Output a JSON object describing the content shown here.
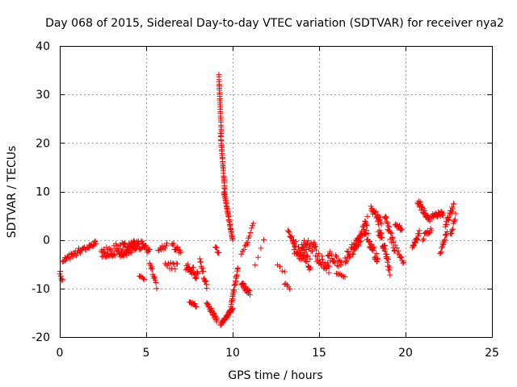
{
  "chart_data": {
    "type": "scatter",
    "title": "Day 068 of 2015, Sidereal Day-to-day VTEC variation (SDTVAR) for receiver nya2",
    "xlabel": "GPS time / hours",
    "ylabel": "SDTVAR / TECUs",
    "xlim": [
      0,
      25
    ],
    "ylim": [
      -20,
      40
    ],
    "xticks": [
      0,
      5,
      10,
      15,
      20,
      25
    ],
    "yticks": [
      -20,
      -10,
      0,
      10,
      20,
      30,
      40
    ],
    "grid": true,
    "marker": "+",
    "color": "#ff0000",
    "segments": [
      {
        "x0": 0.0,
        "x1": 0.15,
        "y0": -6.5,
        "y1": -8.5,
        "n": 6,
        "jitter": 1.0
      },
      {
        "x0": 0.15,
        "x1": 1.2,
        "y0": -4.0,
        "y1": -2.0,
        "n": 22,
        "jitter": 1.5
      },
      {
        "x0": 1.2,
        "x1": 1.7,
        "y0": -2.5,
        "y1": -1.0,
        "n": 10,
        "jitter": 1.0
      },
      {
        "x0": 1.7,
        "x1": 2.1,
        "y0": -1.5,
        "y1": -0.5,
        "n": 10,
        "jitter": 0.8
      },
      {
        "x0": 2.4,
        "x1": 4.8,
        "y0": -2.5,
        "y1": -1.0,
        "n": 80,
        "jitter": 2.5
      },
      {
        "x0": 3.5,
        "x1": 4.5,
        "y0": -3.0,
        "y1": -1.0,
        "n": 25,
        "jitter": 2.0
      },
      {
        "x0": 4.6,
        "x1": 4.9,
        "y0": -7.5,
        "y1": -8.0,
        "n": 6,
        "jitter": 0.5
      },
      {
        "x0": 4.8,
        "x1": 5.2,
        "y0": -1.0,
        "y1": -2.5,
        "n": 12,
        "jitter": 1.2
      },
      {
        "x0": 5.2,
        "x1": 5.6,
        "y0": -4.5,
        "y1": -9.5,
        "n": 12,
        "jitter": 1.0
      },
      {
        "x0": 5.7,
        "x1": 6.2,
        "y0": -2.0,
        "y1": -1.0,
        "n": 10,
        "jitter": 1.0
      },
      {
        "x0": 6.1,
        "x1": 6.8,
        "y0": -5.0,
        "y1": -5.5,
        "n": 12,
        "jitter": 1.5
      },
      {
        "x0": 6.5,
        "x1": 7.0,
        "y0": -1.0,
        "y1": -2.5,
        "n": 12,
        "jitter": 1.2
      },
      {
        "x0": 7.3,
        "x1": 8.0,
        "y0": -5.0,
        "y1": -8.0,
        "n": 25,
        "jitter": 2.5
      },
      {
        "x0": 7.5,
        "x1": 7.9,
        "y0": -13.0,
        "y1": -13.5,
        "n": 10,
        "jitter": 0.6
      },
      {
        "x0": 8.1,
        "x1": 8.5,
        "y0": -4.0,
        "y1": -10.0,
        "n": 15,
        "jitter": 1.5
      },
      {
        "x0": 8.5,
        "x1": 9.1,
        "y0": -13.0,
        "y1": -16.5,
        "n": 22,
        "jitter": 1.2
      },
      {
        "x0": 9.0,
        "x1": 9.2,
        "y0": -1.0,
        "y1": -3.0,
        "n": 6,
        "jitter": 1.0
      },
      {
        "x0": 9.2,
        "x1": 9.35,
        "y0": 34.0,
        "y1": 22.0,
        "n": 28,
        "jitter": 0.2
      },
      {
        "x0": 9.3,
        "x1": 9.55,
        "y0": 22.0,
        "y1": 10.0,
        "n": 30,
        "jitter": 0.3
      },
      {
        "x0": 9.5,
        "x1": 10.0,
        "y0": 10.0,
        "y1": 0.0,
        "n": 40,
        "jitter": 0.4
      },
      {
        "x0": 9.3,
        "x1": 10.0,
        "y0": -17.5,
        "y1": -14.0,
        "n": 32,
        "jitter": 0.8
      },
      {
        "x0": 9.9,
        "x1": 10.3,
        "y0": -13.5,
        "y1": -6.0,
        "n": 25,
        "jitter": 0.8
      },
      {
        "x0": 10.5,
        "x1": 11.0,
        "y0": -9.0,
        "y1": -11.0,
        "n": 18,
        "jitter": 1.2
      },
      {
        "x0": 10.8,
        "x1": 11.2,
        "y0": -1.0,
        "y1": 3.5,
        "n": 8,
        "jitter": 0.5
      },
      {
        "x0": 10.5,
        "x1": 10.8,
        "y0": -3.0,
        "y1": -1.0,
        "n": 5,
        "jitter": 0.8
      },
      {
        "x0": 11.3,
        "x1": 11.8,
        "y0": -5.0,
        "y1": 0.0,
        "n": 4,
        "jitter": 0.5
      },
      {
        "x0": 12.6,
        "x1": 13.0,
        "y0": -5.0,
        "y1": -6.5,
        "n": 4,
        "jitter": 0.8
      },
      {
        "x0": 13.0,
        "x1": 13.3,
        "y0": -9.0,
        "y1": -10.0,
        "n": 5,
        "jitter": 0.5
      },
      {
        "x0": 13.2,
        "x1": 13.6,
        "y0": 2.0,
        "y1": -1.0,
        "n": 12,
        "jitter": 1.0
      },
      {
        "x0": 13.5,
        "x1": 14.5,
        "y0": -1.0,
        "y1": -5.0,
        "n": 40,
        "jitter": 3.0
      },
      {
        "x0": 14.0,
        "x1": 14.8,
        "y0": -1.0,
        "y1": -1.5,
        "n": 25,
        "jitter": 2.5
      },
      {
        "x0": 14.8,
        "x1": 15.6,
        "y0": -3.0,
        "y1": -6.0,
        "n": 25,
        "jitter": 2.5
      },
      {
        "x0": 15.5,
        "x1": 16.3,
        "y0": -3.0,
        "y1": -5.0,
        "n": 20,
        "jitter": 2.0
      },
      {
        "x0": 16.0,
        "x1": 16.5,
        "y0": -7.0,
        "y1": -7.5,
        "n": 8,
        "jitter": 0.5
      },
      {
        "x0": 16.5,
        "x1": 17.4,
        "y0": -4.0,
        "y1": 0.0,
        "n": 30,
        "jitter": 2.5
      },
      {
        "x0": 17.0,
        "x1": 17.8,
        "y0": -2.0,
        "y1": 4.0,
        "n": 28,
        "jitter": 2.0
      },
      {
        "x0": 17.6,
        "x1": 18.4,
        "y0": 2.0,
        "y1": -4.0,
        "n": 30,
        "jitter": 2.5
      },
      {
        "x0": 18.0,
        "x1": 18.6,
        "y0": 6.5,
        "y1": 4.0,
        "n": 22,
        "jitter": 1.5
      },
      {
        "x0": 18.4,
        "x1": 19.1,
        "y0": 3.0,
        "y1": -6.0,
        "n": 35,
        "jitter": 2.5
      },
      {
        "x0": 18.8,
        "x1": 19.4,
        "y0": 4.5,
        "y1": -2.0,
        "n": 22,
        "jitter": 2.0
      },
      {
        "x0": 19.4,
        "x1": 19.8,
        "y0": 3.5,
        "y1": 2.0,
        "n": 12,
        "jitter": 1.0
      },
      {
        "x0": 19.5,
        "x1": 19.9,
        "y0": -2.0,
        "y1": -5.0,
        "n": 10,
        "jitter": 1.0
      },
      {
        "x0": 20.4,
        "x1": 20.8,
        "y0": -2.0,
        "y1": 1.5,
        "n": 15,
        "jitter": 1.2
      },
      {
        "x0": 20.7,
        "x1": 21.4,
        "y0": 8.0,
        "y1": 4.0,
        "n": 25,
        "jitter": 1.5
      },
      {
        "x0": 21.0,
        "x1": 21.5,
        "y0": 0.5,
        "y1": 2.0,
        "n": 12,
        "jitter": 1.2
      },
      {
        "x0": 21.5,
        "x1": 22.2,
        "y0": 5.0,
        "y1": 5.5,
        "n": 20,
        "jitter": 1.0
      },
      {
        "x0": 22.0,
        "x1": 22.4,
        "y0": -3.0,
        "y1": 1.5,
        "n": 14,
        "jitter": 1.2
      },
      {
        "x0": 22.3,
        "x1": 22.8,
        "y0": 3.0,
        "y1": 7.0,
        "n": 18,
        "jitter": 1.5
      },
      {
        "x0": 22.6,
        "x1": 22.9,
        "y0": 1.0,
        "y1": 5.0,
        "n": 10,
        "jitter": 1.5
      }
    ]
  }
}
